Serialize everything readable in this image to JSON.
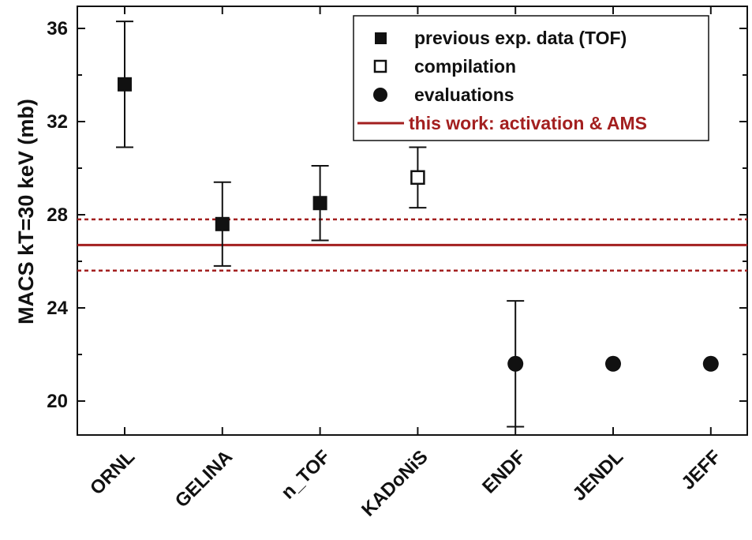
{
  "chart_data": {
    "type": "scatter",
    "ylabel": "MACS kT=30 keV (mb)",
    "ylim": [
      18.5,
      37.2
    ],
    "yticks": [
      20,
      24,
      28,
      32,
      36
    ],
    "categories": [
      "ORNL",
      "GELINA",
      "n_TOF",
      "KADoNiS",
      "ENDF",
      "JENDL",
      "JEFF"
    ],
    "series": [
      {
        "name": "previous exp. data (TOF)",
        "marker": "filled-square",
        "points": [
          {
            "category": "ORNL",
            "value": 33.6,
            "err_low": 30.9,
            "err_high": 36.3
          },
          {
            "category": "GELINA",
            "value": 27.6,
            "err_low": 25.8,
            "err_high": 29.4
          },
          {
            "category": "n_TOF",
            "value": 28.5,
            "err_low": 26.9,
            "err_high": 30.1
          }
        ]
      },
      {
        "name": "compilation",
        "marker": "open-square",
        "points": [
          {
            "category": "KADoNiS",
            "value": 29.6,
            "err_low": 28.3,
            "err_high": 30.9
          }
        ]
      },
      {
        "name": "evaluations",
        "marker": "filled-circle",
        "points": [
          {
            "category": "ENDF",
            "value": 21.6,
            "err_low": 18.9,
            "err_high": 24.3
          },
          {
            "category": "JENDL",
            "value": 21.6
          },
          {
            "category": "JEFF",
            "value": 21.6
          }
        ]
      }
    ],
    "reference_line": {
      "name": "this work: activation & AMS",
      "value": 26.7,
      "band_low": 25.6,
      "band_high": 27.8,
      "color": "#a31f1f"
    },
    "legend_position": "top-right",
    "grid": false
  }
}
